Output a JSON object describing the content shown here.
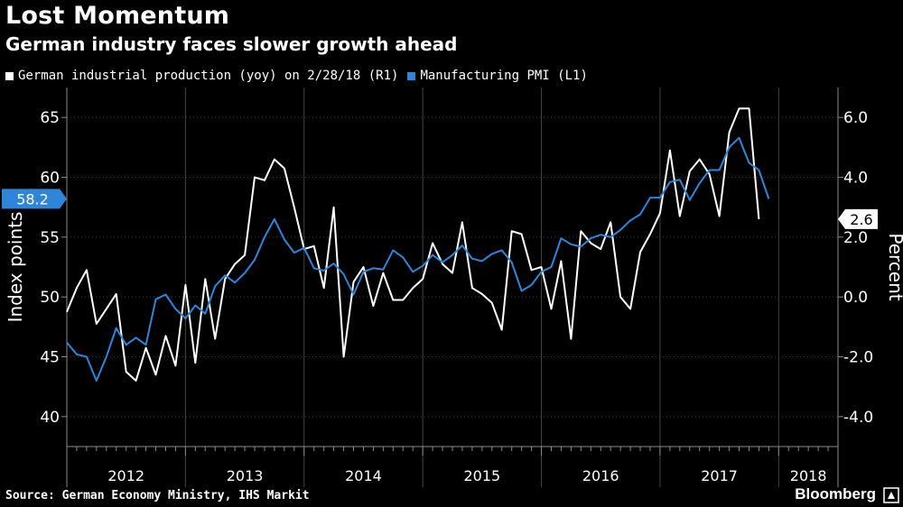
{
  "title": "Lost Momentum",
  "subtitle": "German industry faces slower growth ahead",
  "source": "Source: German Economy Ministry, IHS Markit",
  "brand": "Bloomberg",
  "colors": {
    "background": "#000000",
    "ip": "#ffffff",
    "pmi": "#2f86d8",
    "axis": "#8a8a8a"
  },
  "chart_data": {
    "type": "line",
    "title": "Lost Momentum",
    "subtitle": "German industry faces slower growth ahead",
    "left_axis": {
      "label": "Index points",
      "range": [
        37.5,
        67.5
      ],
      "ticks": [
        40,
        45,
        50,
        55,
        60,
        65
      ],
      "tick_labels": [
        "40",
        "45",
        "50",
        "55",
        "60",
        "65"
      ]
    },
    "right_axis": {
      "label": "Percent",
      "range": [
        -5,
        7
      ],
      "ticks": [
        -4,
        -2,
        0,
        2,
        4,
        6
      ],
      "tick_labels": [
        "-4.0",
        "-2.0",
        "0.0",
        "2.0",
        "4.0",
        "6.0"
      ]
    },
    "x_axis": {
      "start": 2012.0,
      "end": 2018.5,
      "years": [
        "2012",
        "2013",
        "2014",
        "2015",
        "2016",
        "2017",
        "2018"
      ]
    },
    "series": [
      {
        "name": "German industrial production (yoy) on 2/28/18 (R1)",
        "axis": "right",
        "color": "#ffffff",
        "start": 2012.0,
        "step": 0.0833333,
        "values": [
          -0.5,
          0.3,
          0.9,
          -0.9,
          -0.4,
          0.1,
          -2.5,
          -2.8,
          -1.7,
          -2.6,
          -1.3,
          -2.3,
          0.4,
          -2.2,
          0.6,
          -1.4,
          0.6,
          1.1,
          1.4,
          4.0,
          3.9,
          4.6,
          4.3,
          3.0,
          1.6,
          1.7,
          0.3,
          3.0,
          -2.0,
          0.5,
          1.0,
          -0.3,
          0.8,
          -0.1,
          -0.1,
          0.3,
          0.6,
          1.8,
          1.1,
          0.8,
          2.5,
          0.3,
          0.1,
          -0.2,
          -1.1,
          2.2,
          2.1,
          0.9,
          1.0,
          -0.4,
          1.2,
          -1.4,
          2.2,
          1.8,
          1.6,
          2.5,
          0.0,
          -0.4,
          1.5,
          2.1,
          2.8,
          4.9,
          2.7,
          4.2,
          4.6,
          4.1,
          2.7,
          5.5,
          6.3,
          6.3,
          2.6
        ]
      },
      {
        "name": "Manufacturing PMI (L1)",
        "axis": "left",
        "color": "#2f86d8",
        "start": 2012.0,
        "step": 0.0833333,
        "values": [
          46.2,
          45.2,
          45.0,
          43.0,
          45.0,
          47.4,
          46.0,
          46.6,
          46.0,
          49.8,
          50.2,
          49.0,
          48.2,
          49.3,
          48.6,
          50.9,
          51.8,
          51.2,
          52.0,
          53.1,
          55.0,
          56.5,
          54.8,
          53.7,
          54.1,
          52.4,
          52.2,
          52.8,
          51.9,
          50.2,
          52.1,
          52.4,
          52.3,
          53.9,
          53.3,
          52.1,
          52.6,
          53.5,
          52.9,
          53.5,
          54.3,
          53.2,
          53.0,
          53.6,
          53.9,
          52.9,
          50.5,
          51.0,
          52.1,
          52.5,
          54.9,
          54.4,
          54.2,
          54.9,
          55.2,
          55.0,
          55.6,
          56.4,
          56.9,
          58.3,
          58.3,
          59.6,
          59.8,
          58.1,
          59.5,
          60.6,
          60.6,
          62.5,
          63.3,
          61.2,
          60.6,
          58.2
        ]
      }
    ],
    "end_labels": {
      "pmi": "58.2",
      "ip": "2.6"
    },
    "axis_label_positions": {
      "left": "left-vertical",
      "right": "right-vertical"
    }
  }
}
